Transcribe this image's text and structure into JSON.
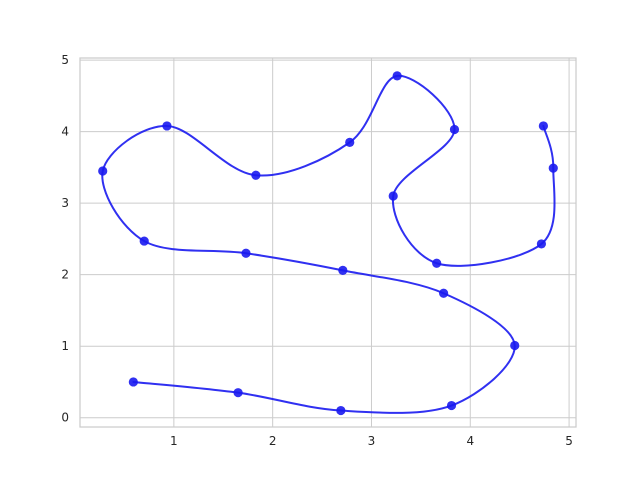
{
  "chart_data": {
    "type": "line",
    "title": "",
    "xlabel": "",
    "ylabel": "",
    "xlim": [
      0.05,
      5.07
    ],
    "ylim": [
      -0.13,
      5.03
    ],
    "x_ticks": [
      1,
      2,
      3,
      4,
      5
    ],
    "y_ticks": [
      0,
      1,
      2,
      3,
      4,
      5
    ],
    "x_tick_labels": [
      "1",
      "2",
      "3",
      "4",
      "5"
    ],
    "y_tick_labels": [
      "0",
      "1",
      "2",
      "3",
      "4",
      "5"
    ],
    "grid": true,
    "legend": "none",
    "series": [
      {
        "color": "#1a1af0",
        "marker": "circle",
        "smooth": true,
        "points": [
          [
            0.59,
            0.5
          ],
          [
            1.65,
            0.35
          ],
          [
            2.69,
            0.1
          ],
          [
            3.81,
            0.17
          ],
          [
            4.45,
            1.01
          ],
          [
            3.73,
            1.74
          ],
          [
            2.71,
            2.06
          ],
          [
            1.73,
            2.3
          ],
          [
            0.7,
            2.47
          ],
          [
            0.28,
            3.45
          ],
          [
            0.93,
            4.08
          ],
          [
            1.83,
            3.39
          ],
          [
            2.78,
            3.85
          ],
          [
            3.26,
            4.78
          ],
          [
            3.84,
            4.03
          ],
          [
            3.22,
            3.1
          ],
          [
            3.66,
            2.16
          ],
          [
            4.72,
            2.43
          ],
          [
            4.84,
            3.49
          ],
          [
            4.74,
            4.08
          ]
        ]
      }
    ]
  }
}
